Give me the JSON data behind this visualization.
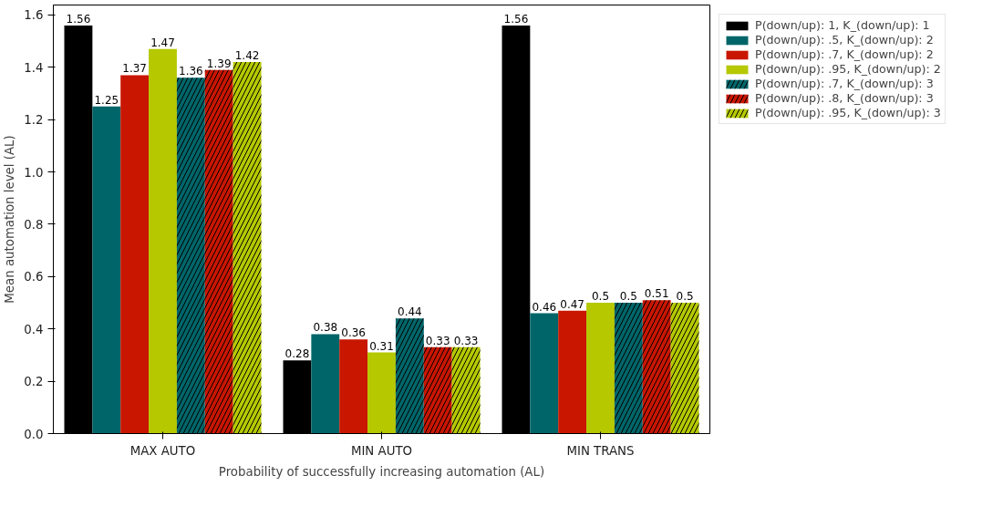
{
  "chart_data": {
    "type": "bar",
    "xlabel": "Probability of successfully increasing automation (AL)",
    "ylabel": "Mean automation level (AL)",
    "categories": [
      "MAX AUTO",
      "MIN AUTO",
      "MIN TRANS"
    ],
    "series": [
      {
        "name": "P(down/up): 1, K_(down/up): 1",
        "color": "#000000",
        "values": [
          1.56,
          0.28,
          1.56
        ]
      },
      {
        "name": "P(down/up): .5, K_(down/up): 2",
        "color": "#006569",
        "values": [
          1.25,
          0.38,
          0.46
        ]
      },
      {
        "name": "P(down/up): .7, K_(down/up): 2",
        "color": "#c81600",
        "values": [
          1.37,
          0.36,
          0.47
        ]
      },
      {
        "name": "P(down/up): .95, K_(down/up): 2",
        "color": "#b5c800",
        "values": [
          1.47,
          0.31,
          0.5
        ]
      },
      {
        "name": "P(down/up): .7, K_(down/up): 3",
        "color": "#006569",
        "values": [
          1.36,
          0.44,
          0.5
        ]
      },
      {
        "name": "P(down/up): .8, K_(down/up): 3",
        "color": "#c81600",
        "values": [
          1.39,
          0.33,
          0.51
        ]
      },
      {
        "name": "P(down/up): .95, K_(down/up): 3",
        "color": "#b5c800",
        "values": [
          1.42,
          0.33,
          0.5
        ]
      }
    ],
    "ylim": [
      0,
      1.638
    ],
    "yticks": [
      {
        "value": 0,
        "label": "0.0"
      },
      0.2,
      0.4,
      0.6,
      0.8,
      {
        "value": 1,
        "label": "1.0"
      },
      1.2,
      1.4,
      1.6
    ],
    "data_labels": true,
    "legend": "right"
  }
}
